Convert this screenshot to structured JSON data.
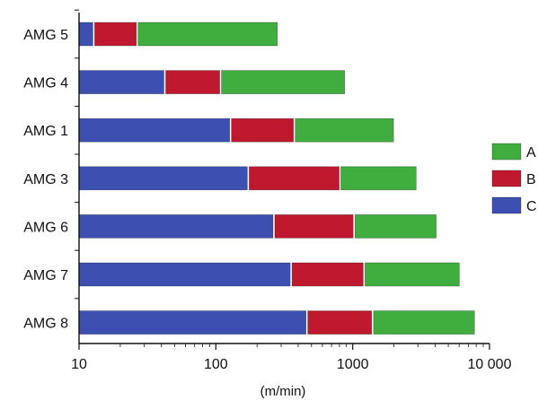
{
  "chart_data": {
    "type": "bar",
    "orientation": "horizontal",
    "stacked": true,
    "x_scale": "log",
    "categories": [
      "AMG 5",
      "AMG 4",
      "AMG 1",
      "AMG 3",
      "AMG 6",
      "AMG 7",
      "AMG 8"
    ],
    "series": [
      {
        "name": "C",
        "color": "#3d4fb0",
        "values": [
          13,
          43,
          130,
          175,
          270,
          360,
          470
        ]
      },
      {
        "name": "B",
        "color": "#c0182e",
        "values": [
          27,
          110,
          380,
          820,
          1040,
          1230,
          1420
        ]
      },
      {
        "name": "A",
        "color": "#3fae3f",
        "values": [
          290,
          900,
          2050,
          3000,
          4200,
          6200,
          8000
        ]
      }
    ],
    "xlim": [
      10,
      10000
    ],
    "x_ticks": [
      10,
      100,
      1000,
      10000
    ],
    "x_tick_labels": [
      "10",
      "100",
      "1000",
      "10 000"
    ],
    "xlabel": "(m/min)",
    "ylabel": "",
    "title": "",
    "legend": {
      "position": "right",
      "order": [
        "A",
        "B",
        "C"
      ]
    },
    "grid": false
  }
}
